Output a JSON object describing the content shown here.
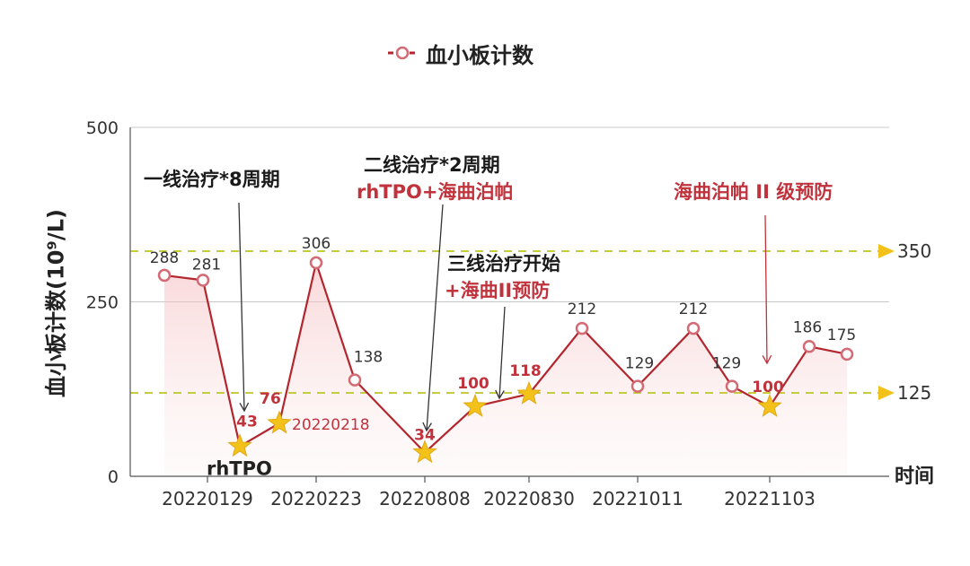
{
  "legend": {
    "label": "血小板计数",
    "color": "#b3262e"
  },
  "chart_data": {
    "type": "line",
    "ylabel": "血小板计数(10⁹/L)",
    "xlabel": "时间",
    "ylim": [
      0,
      500
    ],
    "yticks": [
      0,
      250,
      500
    ],
    "x_tick_labels": [
      "20220129",
      "20220223",
      "20220808",
      "20220830",
      "20221011",
      "20221103"
    ],
    "series": [
      {
        "name": "血小板计数",
        "values": [
          288,
          281,
          43,
          76,
          306,
          138,
          34,
          100,
          118,
          212,
          129,
          212,
          129,
          100,
          186,
          175
        ],
        "star_points": [
          2,
          3,
          6,
          7,
          8,
          13
        ]
      }
    ],
    "reference_lines": [
      {
        "value": 350,
        "label": "350"
      },
      {
        "value": 125,
        "label": "125"
      }
    ],
    "point_annotations": [
      {
        "index": 3,
        "text": "20220218"
      },
      {
        "index": 2,
        "text": "rhTPO"
      }
    ],
    "colors": {
      "line": "#b3262e",
      "star": "#f2c21b",
      "reference": "#c8cc3a",
      "star_label": "#c0323c"
    }
  },
  "annotations": {
    "first_line": "一线治疗*8周期",
    "second_line": "二线治疗*2周期",
    "second_line_drug": "rhTPO+海曲泊帕",
    "third_line": "三线治疗开始",
    "third_line_drug": "+海曲II预防",
    "prevention": "海曲泊帕 II 级预防"
  }
}
